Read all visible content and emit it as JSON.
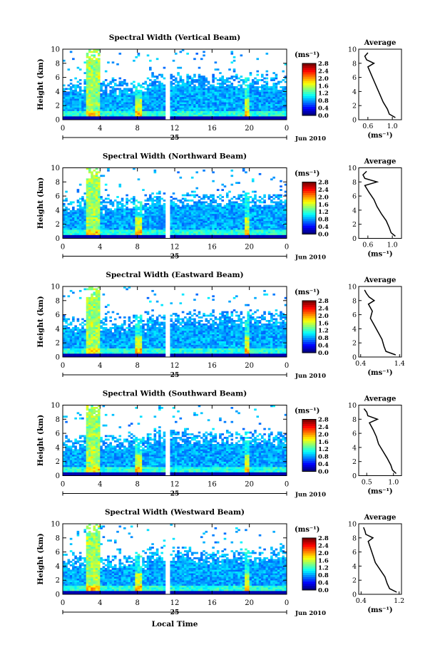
{
  "common": {
    "height_label": "Height (km)",
    "colorbar_unit": "(ms⁻¹)",
    "colorbar_ticks": [
      "0.0",
      "0.4",
      "0.8",
      "1.2",
      "1.6",
      "2.0",
      "2.4",
      "2.8"
    ],
    "height_ticks": [
      "0",
      "2",
      "4",
      "6",
      "8",
      "10"
    ],
    "time_ticks": [
      "0",
      "4",
      "8",
      "12",
      "16",
      "20",
      "0"
    ],
    "day_label": "25",
    "date_label": "Jun 2010",
    "avg_title": "Average",
    "avg_xlabel": "(ms⁻¹)",
    "xlabel": "Local Time"
  },
  "chart_data": [
    {
      "type": "heatmap",
      "title": "Spectral Width (Vertical Beam)",
      "ylim": [
        0,
        10
      ],
      "xlim": [
        0,
        24
      ],
      "clim": [
        0.0,
        2.8
      ],
      "data_gap_hours": [
        11.0,
        11.4
      ],
      "average_profile": {
        "xlabel_ticks": [
          "0.6",
          "1.0"
        ],
        "xlim": [
          0.45,
          1.15
        ],
        "height": [
          0.3,
          0.8,
          1.5,
          2.5,
          3.5,
          4.5,
          5.5,
          6.5,
          7.5,
          8.0,
          8.5,
          9.0,
          9.5
        ],
        "value": [
          1.05,
          0.95,
          0.92,
          0.85,
          0.8,
          0.75,
          0.7,
          0.65,
          0.6,
          0.7,
          0.58,
          0.55,
          0.6
        ]
      }
    },
    {
      "type": "heatmap",
      "title": "Spectral Width (Northward Beam)",
      "ylim": [
        0,
        10
      ],
      "xlim": [
        0,
        24
      ],
      "clim": [
        0.0,
        2.8
      ],
      "data_gap_hours": [
        11.0,
        11.4
      ],
      "average_profile": {
        "xlabel_ticks": [
          "0.6",
          "1.0"
        ],
        "xlim": [
          0.45,
          1.15
        ],
        "height": [
          0.3,
          0.8,
          1.5,
          2.5,
          3.5,
          4.5,
          5.5,
          6.5,
          7.5,
          8.0,
          8.5,
          9.0,
          9.5
        ],
        "value": [
          1.05,
          0.98,
          0.95,
          0.9,
          0.82,
          0.75,
          0.7,
          0.62,
          0.55,
          0.75,
          0.55,
          0.52,
          0.58
        ]
      }
    },
    {
      "type": "heatmap",
      "title": "Spectral Width (Eastward Beam)",
      "ylim": [
        0,
        10
      ],
      "xlim": [
        0,
        24
      ],
      "clim": [
        0.0,
        2.8
      ],
      "data_gap_hours": [
        11.0,
        11.4
      ],
      "average_profile": {
        "xlabel_ticks": [
          "0.4",
          "1.4"
        ],
        "xlim": [
          0.35,
          1.45
        ],
        "height": [
          0.3,
          0.8,
          1.5,
          2.5,
          3.5,
          4.5,
          5.5,
          6.5,
          7.5,
          8.0,
          8.5,
          9.0,
          9.5
        ],
        "value": [
          1.3,
          1.05,
          1.0,
          0.95,
          0.85,
          0.75,
          0.65,
          0.7,
          0.6,
          0.75,
          0.62,
          0.55,
          0.5
        ]
      }
    },
    {
      "type": "heatmap",
      "title": "Spectral Width (Southward Beam)",
      "ylim": [
        0,
        10
      ],
      "xlim": [
        0,
        24
      ],
      "clim": [
        0.0,
        2.8
      ],
      "data_gap_hours": [
        11.0,
        11.4
      ],
      "average_profile": {
        "xlabel_ticks": [
          "0.5",
          "1.0"
        ],
        "xlim": [
          0.35,
          1.15
        ],
        "height": [
          0.3,
          0.8,
          1.5,
          2.5,
          3.5,
          4.5,
          5.5,
          6.5,
          7.5,
          8.0,
          8.5,
          9.0,
          9.5
        ],
        "value": [
          1.05,
          0.98,
          0.95,
          0.88,
          0.8,
          0.72,
          0.68,
          0.62,
          0.55,
          0.7,
          0.52,
          0.5,
          0.45
        ]
      }
    },
    {
      "type": "heatmap",
      "title": "Spectral Width (Westward Beam)",
      "ylim": [
        0,
        10
      ],
      "xlim": [
        0,
        24
      ],
      "clim": [
        0.0,
        2.8
      ],
      "data_gap_hours": [
        11.0,
        11.4
      ],
      "average_profile": {
        "xlabel_ticks": [
          "0.4",
          "1.2"
        ],
        "xlim": [
          0.35,
          1.25
        ],
        "height": [
          0.3,
          0.8,
          1.5,
          2.5,
          3.5,
          4.5,
          5.5,
          6.5,
          7.5,
          8.0,
          8.5,
          9.0,
          9.5
        ],
        "value": [
          1.15,
          1.0,
          0.95,
          0.9,
          0.8,
          0.7,
          0.65,
          0.6,
          0.55,
          0.65,
          0.5,
          0.48,
          0.45
        ]
      }
    }
  ]
}
